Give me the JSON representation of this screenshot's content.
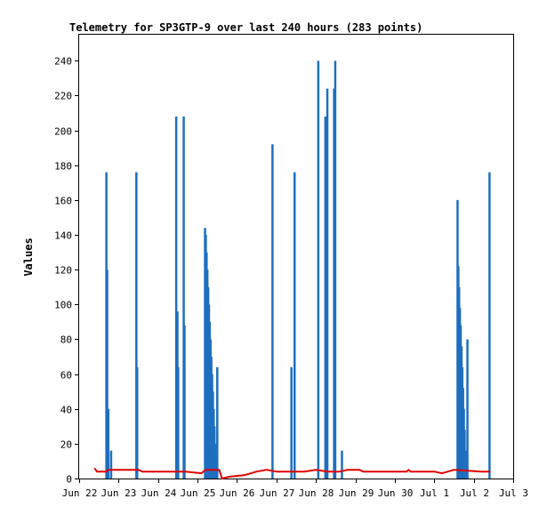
{
  "chart_data": {
    "type": "bar",
    "title": "Telemetry for SP3GTP-9 over last 240 hours (283 points)",
    "xlabel": "",
    "ylabel": "Values",
    "ylim": [
      0,
      255
    ],
    "y_ticks": [
      0,
      20,
      40,
      60,
      80,
      100,
      120,
      140,
      160,
      180,
      200,
      220,
      240
    ],
    "x_range_days": [
      0,
      11
    ],
    "x_tick_labels": [
      "Jun 22",
      "Jun 23",
      "Jun 24",
      "Jun 25",
      "Jun 26",
      "Jun 27",
      "Jun 28",
      "Jun 29",
      "Jun 30",
      "Jul 1",
      "Jul 2",
      "Jul 3"
    ],
    "grid": false,
    "colors": {
      "series1": "#1f6fbf",
      "series2": "#e00000",
      "axis": "#000000"
    },
    "series": [
      {
        "name": "",
        "style": "spikes",
        "points": [
          {
            "x": 0.69,
            "y": 176
          },
          {
            "x": 0.71,
            "y": 120
          },
          {
            "x": 0.74,
            "y": 40
          },
          {
            "x": 0.81,
            "y": 16
          },
          {
            "x": 1.45,
            "y": 176
          },
          {
            "x": 1.47,
            "y": 64
          },
          {
            "x": 2.46,
            "y": 208
          },
          {
            "x": 2.49,
            "y": 96
          },
          {
            "x": 2.51,
            "y": 64
          },
          {
            "x": 2.65,
            "y": 208
          },
          {
            "x": 2.67,
            "y": 88
          },
          {
            "x": 3.19,
            "y": 144
          },
          {
            "x": 3.21,
            "y": 140
          },
          {
            "x": 3.23,
            "y": 130
          },
          {
            "x": 3.25,
            "y": 120
          },
          {
            "x": 3.27,
            "y": 110
          },
          {
            "x": 3.29,
            "y": 100
          },
          {
            "x": 3.31,
            "y": 90
          },
          {
            "x": 3.33,
            "y": 80
          },
          {
            "x": 3.35,
            "y": 70
          },
          {
            "x": 3.37,
            "y": 60
          },
          {
            "x": 3.39,
            "y": 50
          },
          {
            "x": 3.41,
            "y": 40
          },
          {
            "x": 3.43,
            "y": 30
          },
          {
            "x": 3.45,
            "y": 20
          },
          {
            "x": 3.47,
            "y": 10
          },
          {
            "x": 3.5,
            "y": 64
          },
          {
            "x": 4.9,
            "y": 192
          },
          {
            "x": 5.38,
            "y": 64
          },
          {
            "x": 5.46,
            "y": 176
          },
          {
            "x": 6.06,
            "y": 240
          },
          {
            "x": 6.24,
            "y": 208
          },
          {
            "x": 6.29,
            "y": 224
          },
          {
            "x": 6.46,
            "y": 224
          },
          {
            "x": 6.49,
            "y": 240
          },
          {
            "x": 6.66,
            "y": 16
          },
          {
            "x": 9.59,
            "y": 160
          },
          {
            "x": 9.61,
            "y": 122
          },
          {
            "x": 9.63,
            "y": 110
          },
          {
            "x": 9.65,
            "y": 98
          },
          {
            "x": 9.67,
            "y": 88
          },
          {
            "x": 9.69,
            "y": 76
          },
          {
            "x": 9.71,
            "y": 64
          },
          {
            "x": 9.73,
            "y": 52
          },
          {
            "x": 9.75,
            "y": 40
          },
          {
            "x": 9.77,
            "y": 28
          },
          {
            "x": 9.79,
            "y": 16
          },
          {
            "x": 9.84,
            "y": 80
          },
          {
            "x": 10.4,
            "y": 176
          }
        ]
      },
      {
        "name": "",
        "style": "line",
        "points": [
          {
            "x": 0.39,
            "y": 6
          },
          {
            "x": 0.45,
            "y": 4
          },
          {
            "x": 0.7,
            "y": 4
          },
          {
            "x": 0.72,
            "y": 5
          },
          {
            "x": 1.5,
            "y": 5
          },
          {
            "x": 1.6,
            "y": 4
          },
          {
            "x": 2.4,
            "y": 4
          },
          {
            "x": 2.7,
            "y": 4
          },
          {
            "x": 3.1,
            "y": 3
          },
          {
            "x": 3.2,
            "y": 5
          },
          {
            "x": 3.55,
            "y": 5
          },
          {
            "x": 3.62,
            "y": 0
          },
          {
            "x": 3.8,
            "y": 1
          },
          {
            "x": 4.2,
            "y": 2
          },
          {
            "x": 4.5,
            "y": 4
          },
          {
            "x": 4.75,
            "y": 5
          },
          {
            "x": 5.0,
            "y": 4
          },
          {
            "x": 5.7,
            "y": 4
          },
          {
            "x": 6.0,
            "y": 5
          },
          {
            "x": 6.3,
            "y": 4
          },
          {
            "x": 6.6,
            "y": 4
          },
          {
            "x": 6.8,
            "y": 5
          },
          {
            "x": 7.1,
            "y": 5
          },
          {
            "x": 7.2,
            "y": 4
          },
          {
            "x": 8.3,
            "y": 4
          },
          {
            "x": 8.35,
            "y": 5
          },
          {
            "x": 8.4,
            "y": 4
          },
          {
            "x": 9.0,
            "y": 4
          },
          {
            "x": 9.2,
            "y": 3
          },
          {
            "x": 9.5,
            "y": 5
          },
          {
            "x": 10.2,
            "y": 4
          },
          {
            "x": 10.42,
            "y": 4
          }
        ]
      }
    ]
  }
}
